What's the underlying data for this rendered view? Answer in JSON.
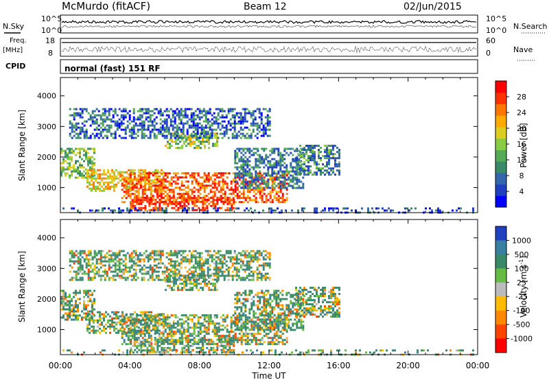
{
  "header": {
    "station": "McMurdo (fitACF)",
    "beam": "Beam 12",
    "date": "02/Jun/2015"
  },
  "status_panels": {
    "nsky_label": "N.Sky",
    "nsearch_label": "N.Search",
    "noise_ticks": [
      "10^5",
      "10^0"
    ],
    "freq_label_1": "Freq.",
    "freq_label_2": "[MHz]",
    "freq_ticks": [
      "18",
      "8"
    ],
    "nave_label": "Nave",
    "nave_ticks": [
      "60",
      "0"
    ],
    "cpid_label": "CPID",
    "cpid_text": "normal (fast) 151 RF"
  },
  "chart_data": [
    {
      "type": "heatmap",
      "name": "power",
      "ylabel": "Slant Range [km]",
      "xlabel": "",
      "x_ticks": [
        "00:00",
        "04:00",
        "08:00",
        "12:00",
        "16:00",
        "20:00",
        "00:00"
      ],
      "y_ticks": [
        "1000",
        "2000",
        "3000",
        "4000"
      ],
      "xlim": [
        0,
        24
      ],
      "ylim": [
        180,
        4600
      ],
      "colorbar": {
        "label": "Power [dB]",
        "ticks": [
          "4",
          "8",
          "12",
          "16",
          "20",
          "24",
          "28"
        ],
        "colors": [
          "#0000ff",
          "#2040c0",
          "#3366aa",
          "#3a8a6a",
          "#55aa55",
          "#88cc44",
          "#ddcc22",
          "#ffaa00",
          "#ff7700",
          "#ff3300",
          "#ff0000"
        ]
      }
    },
    {
      "type": "heatmap",
      "name": "velocity",
      "ylabel": "Slant Range [km]",
      "xlabel": "Time UT",
      "x_ticks": [
        "00:00",
        "04:00",
        "08:00",
        "12:00",
        "16:00",
        "20:00",
        "00:00"
      ],
      "y_ticks": [
        "1000",
        "2000",
        "3000",
        "4000"
      ],
      "xlim": [
        0,
        24
      ],
      "ylim": [
        180,
        4600
      ],
      "colorbar": {
        "label": "Velocity [m s^-1]",
        "ticks": [
          "1000",
          "500",
          "100",
          "25",
          "-25",
          "-100",
          "-500",
          "-1000"
        ],
        "colors": [
          "#2040c0",
          "#3a80a0",
          "#3a8a6a",
          "#66bb44",
          "#bbbbbb",
          "#ffbb00",
          "#ff8800",
          "#ff4400",
          "#ff0000"
        ]
      }
    }
  ]
}
